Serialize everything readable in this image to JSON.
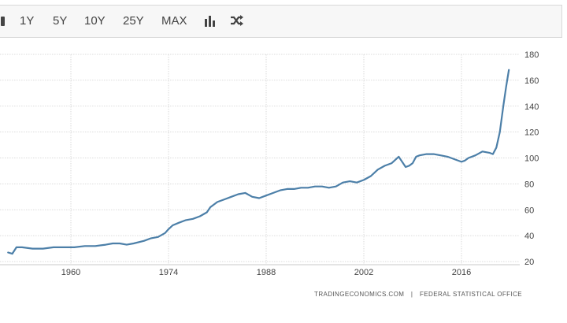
{
  "toolbar": {
    "ranges": [
      "1Y",
      "5Y",
      "10Y",
      "25Y",
      "MAX"
    ],
    "icons": [
      "bar-chart-icon",
      "shuffle-icon"
    ]
  },
  "source": {
    "site": "TRADINGECONOMICS.COM",
    "separator": "|",
    "publisher": "FEDERAL STATISTICAL OFFICE"
  },
  "colors": {
    "line": "#4c7fa8",
    "grid": "#d0d0d0",
    "toolbar_bg": "#f7f7f7"
  },
  "chart_data": {
    "type": "line",
    "title": "",
    "xlabel": "",
    "ylabel": "",
    "x_ticks": [
      "1960",
      "1974",
      "1988",
      "2002",
      "2016"
    ],
    "y_ticks": [
      20,
      40,
      60,
      80,
      100,
      120,
      140,
      160,
      180
    ],
    "xlim": [
      1951,
      2025
    ],
    "ylim": [
      20,
      180
    ],
    "grid": true,
    "series": [
      {
        "x": [
          1951,
          1951.6,
          1952.2,
          1953,
          1954.5,
          1956,
          1957.5,
          1959,
          1960.5,
          1962,
          1963.5,
          1965,
          1966,
          1967,
          1968,
          1969,
          1970.5,
          1971.5,
          1972.5,
          1973.5,
          1974,
          1974.6,
          1975.5,
          1976.5,
          1977.5,
          1978.5,
          1979.5,
          1980,
          1981,
          1982,
          1983,
          1984,
          1985,
          1986,
          1987,
          1988,
          1989,
          1990,
          1991,
          1992,
          1993,
          1994,
          1995,
          1996,
          1997,
          1998,
          1999,
          2000,
          2001,
          2002,
          2003,
          2004,
          2005,
          2006,
          2007,
          2008,
          2008.5,
          2009,
          2009.5,
          2010,
          2011,
          2012,
          2013,
          2014,
          2015,
          2016,
          2016.5,
          2017,
          2018,
          2019,
          2020,
          2020.5,
          2021,
          2021.5,
          2022,
          2022.4,
          2022.8
        ],
        "y": [
          27,
          26,
          31,
          31,
          30,
          30,
          31,
          31,
          31,
          32,
          32,
          33,
          34,
          34,
          33,
          34,
          36,
          38,
          39,
          42,
          45,
          48,
          50,
          52,
          53,
          55,
          58,
          62,
          66,
          68,
          70,
          72,
          73,
          70,
          69,
          71,
          73,
          75,
          76,
          76,
          77,
          77,
          78,
          78,
          77,
          78,
          81,
          82,
          81,
          83,
          86,
          91,
          94,
          96,
          101,
          93,
          94,
          96,
          101,
          102,
          103,
          103,
          102,
          101,
          99,
          97,
          98,
          100,
          102,
          105,
          104,
          103,
          108,
          120,
          140,
          155,
          168
        ]
      }
    ]
  }
}
